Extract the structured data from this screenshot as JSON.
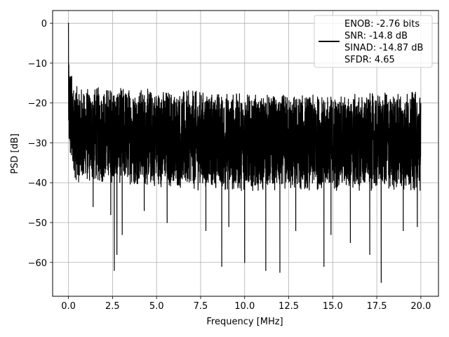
{
  "chart_data": {
    "type": "line",
    "title": "",
    "xlabel": "Frequency [MHz]",
    "ylabel": "PSD [dB]",
    "xlim": [
      -0.9,
      21.0
    ],
    "ylim": [
      -68.5,
      3.2
    ],
    "grid": true,
    "legend_placement": "top-right",
    "x_ticks": [
      0.0,
      2.5,
      5.0,
      7.5,
      10.0,
      12.5,
      15.0,
      17.5,
      20.0
    ],
    "x_tick_labels": [
      "0.0",
      "2.5",
      "5.0",
      "7.5",
      "10.0",
      "12.5",
      "15.0",
      "17.5",
      "20.0"
    ],
    "y_ticks": [
      0,
      -10,
      -20,
      -30,
      -40,
      -50,
      -60
    ],
    "y_tick_labels": [
      "0",
      "−10",
      "−20",
      "−30",
      "−40",
      "−50",
      "−60"
    ],
    "series": [
      {
        "color": "#000000",
        "x_start": 0.0,
        "x_end": 20.0,
        "dc_peak": {
          "x": 0.0,
          "y": 0.0
        },
        "envelope": [
          {
            "x": 0.0,
            "upper": -8,
            "lower": -32
          },
          {
            "x": 0.2,
            "upper": -13,
            "lower": -38
          },
          {
            "x": 0.5,
            "upper": -16,
            "lower": -40
          },
          {
            "x": 2.5,
            "upper": -16,
            "lower": -40
          },
          {
            "x": 5.0,
            "upper": -16.5,
            "lower": -41
          },
          {
            "x": 7.5,
            "upper": -17,
            "lower": -42
          },
          {
            "x": 10.0,
            "upper": -17.5,
            "lower": -42
          },
          {
            "x": 12.5,
            "upper": -18,
            "lower": -42
          },
          {
            "x": 15.0,
            "upper": -18,
            "lower": -42
          },
          {
            "x": 17.5,
            "upper": -17.5,
            "lower": -42
          },
          {
            "x": 20.0,
            "upper": -17,
            "lower": -42
          }
        ],
        "notable_dips": [
          {
            "x": 1.4,
            "y": -46
          },
          {
            "x": 2.4,
            "y": -48
          },
          {
            "x": 2.6,
            "y": -62
          },
          {
            "x": 2.75,
            "y": -58
          },
          {
            "x": 3.05,
            "y": -53
          },
          {
            "x": 4.3,
            "y": -47
          },
          {
            "x": 5.6,
            "y": -50
          },
          {
            "x": 7.8,
            "y": -52
          },
          {
            "x": 8.7,
            "y": -61
          },
          {
            "x": 9.1,
            "y": -51
          },
          {
            "x": 10.0,
            "y": -60
          },
          {
            "x": 11.2,
            "y": -62
          },
          {
            "x": 12.0,
            "y": -62.5
          },
          {
            "x": 12.9,
            "y": -52
          },
          {
            "x": 14.5,
            "y": -61
          },
          {
            "x": 14.9,
            "y": -53
          },
          {
            "x": 16.0,
            "y": -55
          },
          {
            "x": 17.1,
            "y": -58
          },
          {
            "x": 17.75,
            "y": -65
          },
          {
            "x": 19.0,
            "y": -52
          },
          {
            "x": 19.8,
            "y": -51
          }
        ]
      }
    ],
    "legend": {
      "lines": [
        "ENOB: -2.76 bits",
        "SNR: -14.8 dB",
        "SINAD: -14.87 dB",
        "SFDR: 4.65"
      ]
    }
  }
}
